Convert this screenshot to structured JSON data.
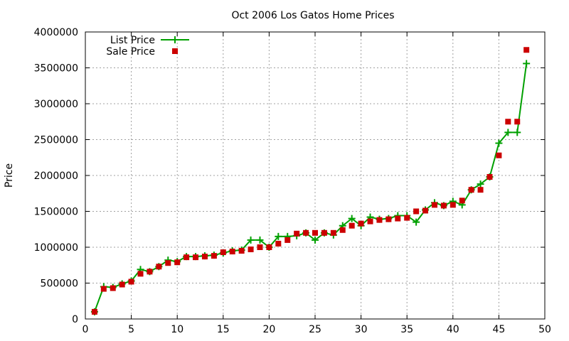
{
  "chart_data": {
    "type": "line",
    "title": "Oct 2006 Los Gatos Home Prices",
    "xlabel": "",
    "ylabel": "Price",
    "xlim": [
      0,
      50
    ],
    "ylim": [
      0,
      4000000
    ],
    "x_ticks": [
      0,
      5,
      10,
      15,
      20,
      25,
      30,
      35,
      40,
      45,
      50
    ],
    "y_ticks": [
      0,
      500000,
      1000000,
      1500000,
      2000000,
      2500000,
      3000000,
      3500000,
      4000000
    ],
    "grid": true,
    "legend_position": "top-left",
    "x": [
      1,
      2,
      3,
      4,
      5,
      6,
      7,
      8,
      9,
      10,
      11,
      12,
      13,
      14,
      15,
      16,
      17,
      18,
      19,
      20,
      21,
      22,
      23,
      24,
      25,
      26,
      27,
      28,
      29,
      30,
      31,
      32,
      33,
      34,
      35,
      36,
      37,
      38,
      39,
      40,
      41,
      42,
      43,
      44,
      45,
      46,
      47,
      48
    ],
    "series": [
      {
        "name": "List Price",
        "style": "line-plus",
        "color": "#00a000",
        "values": [
          100000,
          450000,
          440000,
          490000,
          530000,
          690000,
          660000,
          730000,
          820000,
          800000,
          870000,
          870000,
          880000,
          890000,
          920000,
          950000,
          960000,
          1100000,
          1100000,
          1000000,
          1150000,
          1150000,
          1160000,
          1200000,
          1100000,
          1200000,
          1170000,
          1300000,
          1400000,
          1300000,
          1420000,
          1390000,
          1400000,
          1440000,
          1440000,
          1350000,
          1520000,
          1620000,
          1580000,
          1640000,
          1590000,
          1800000,
          1880000,
          1980000,
          2450000,
          2600000,
          2600000,
          3560000
        ]
      },
      {
        "name": "Sale Price",
        "style": "square-marker",
        "color": "#cc0000",
        "values": [
          100000,
          420000,
          430000,
          480000,
          520000,
          630000,
          660000,
          730000,
          780000,
          790000,
          860000,
          860000,
          870000,
          880000,
          930000,
          940000,
          950000,
          970000,
          1000000,
          1000000,
          1050000,
          1100000,
          1190000,
          1200000,
          1200000,
          1200000,
          1200000,
          1240000,
          1300000,
          1330000,
          1360000,
          1380000,
          1390000,
          1400000,
          1410000,
          1500000,
          1510000,
          1590000,
          1580000,
          1590000,
          1650000,
          1800000,
          1800000,
          1980000,
          2280000,
          2750000,
          2750000,
          3750000
        ]
      }
    ]
  }
}
